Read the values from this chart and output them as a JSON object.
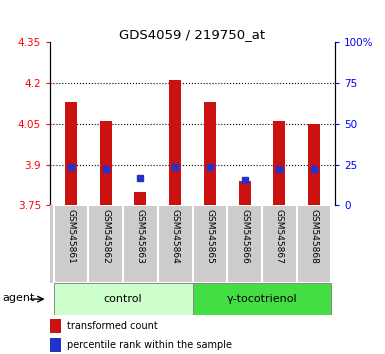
{
  "title": "GDS4059 / 219750_at",
  "samples": [
    "GSM545861",
    "GSM545862",
    "GSM545863",
    "GSM545864",
    "GSM545865",
    "GSM545866",
    "GSM545867",
    "GSM545868"
  ],
  "red_values": [
    4.13,
    4.06,
    3.8,
    4.21,
    4.13,
    3.84,
    4.06,
    4.05
  ],
  "blue_values": [
    3.89,
    3.885,
    3.852,
    3.893,
    3.89,
    3.843,
    3.885,
    3.882
  ],
  "ylim_left": [
    3.75,
    4.35
  ],
  "yticks_left": [
    3.75,
    3.9,
    4.05,
    4.2,
    4.35
  ],
  "ylim_right": [
    0,
    100
  ],
  "yticks_right": [
    0,
    25,
    50,
    75,
    100
  ],
  "ytick_labels_right": [
    "0",
    "25",
    "50",
    "75",
    "100%"
  ],
  "bar_color": "#cc1111",
  "blue_color": "#2233cc",
  "baseline": 3.75,
  "control_label": "control",
  "treatment_label": "γ-tocotrienol",
  "agent_label": "agent",
  "legend_red": "transformed count",
  "legend_blue": "percentile rank within the sample",
  "control_indices": [
    0,
    1,
    2,
    3
  ],
  "treatment_indices": [
    4,
    5,
    6,
    7
  ],
  "grid_yticks": [
    3.9,
    4.05,
    4.2
  ],
  "control_bg": "#ccffcc",
  "treatment_bg": "#44dd44",
  "sample_bg": "#cccccc",
  "bar_width": 0.35
}
